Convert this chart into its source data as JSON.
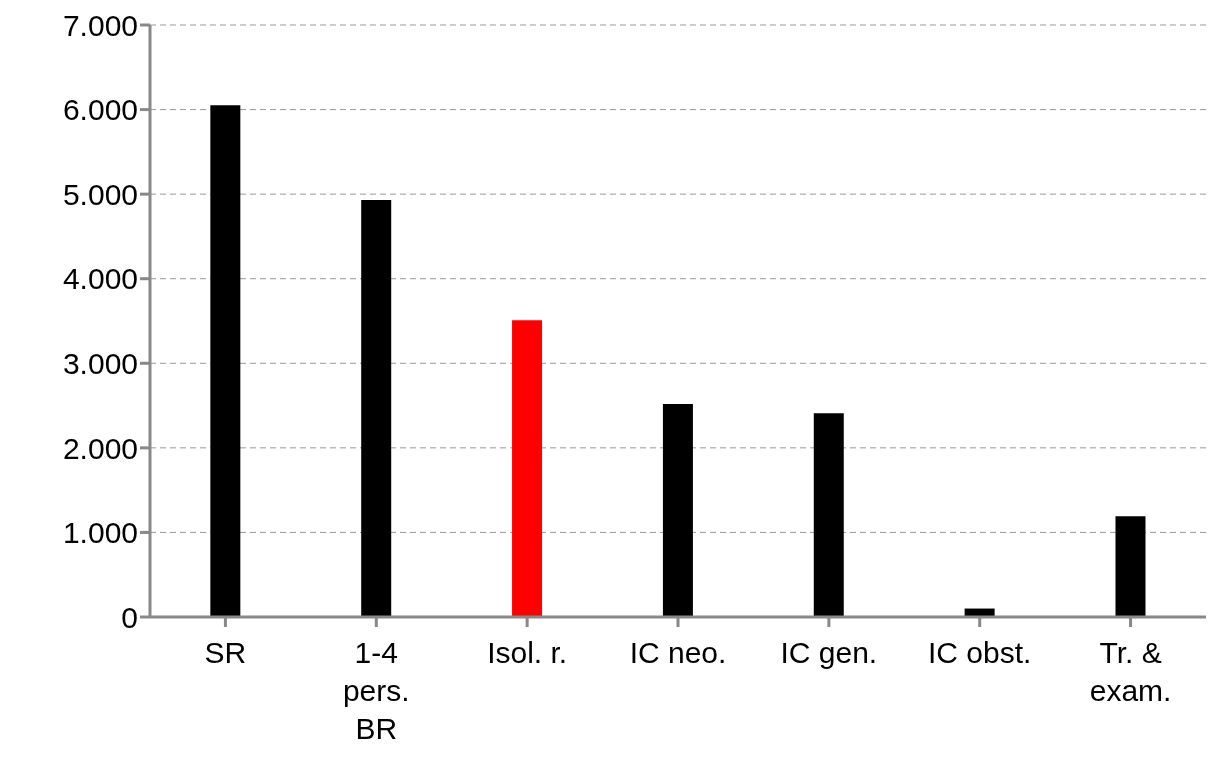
{
  "chart_data": {
    "type": "bar",
    "categories": [
      "SR",
      "1-4 pers. BR",
      "Isol. r.",
      "IC neo.",
      "IC gen.",
      "IC obst.",
      "Tr. & exam."
    ],
    "values": [
      6050,
      4930,
      3510,
      2520,
      2410,
      100,
      1190
    ],
    "colors": [
      "#000000",
      "#000000",
      "#ff0000",
      "#000000",
      "#000000",
      "#000000",
      "#000000"
    ],
    "ylim": [
      0,
      7000
    ],
    "yticks": [
      {
        "value": 0,
        "label": "0"
      },
      {
        "value": 1000,
        "label": "1.000"
      },
      {
        "value": 2000,
        "label": "2.000"
      },
      {
        "value": 3000,
        "label": "3.000"
      },
      {
        "value": 4000,
        "label": "4.000"
      },
      {
        "value": 5000,
        "label": "5.000"
      },
      {
        "value": 6000,
        "label": "6.000"
      },
      {
        "value": 7000,
        "label": "7.000"
      }
    ],
    "grid": "y"
  }
}
